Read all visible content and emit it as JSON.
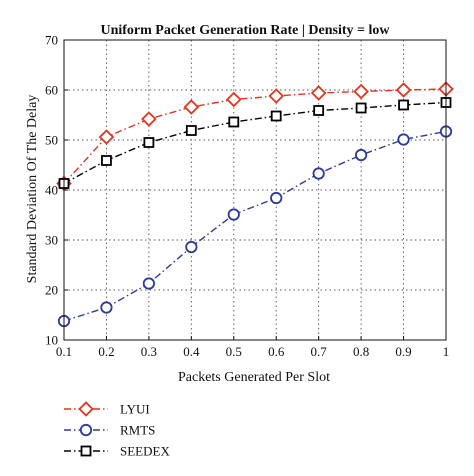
{
  "chart_data": {
    "type": "line",
    "title": "Uniform Packet Generation Rate | Density = low",
    "xlabel": "Packets Generated Per Slot",
    "ylabel": "Standard Deviation Of The Delay",
    "x": [
      0.1,
      0.2,
      0.3,
      0.4,
      0.5,
      0.6,
      0.7,
      0.8,
      0.9,
      1.0
    ],
    "x_tick_labels": [
      "0.1",
      "0.2",
      "0.3",
      "0.4",
      "0.5",
      "0.6",
      "0.7",
      "0.8",
      "0.9",
      "1"
    ],
    "xlim": [
      0.1,
      1.0
    ],
    "ylim": [
      10,
      70
    ],
    "y_ticks": [
      10,
      20,
      30,
      40,
      50,
      60,
      70
    ],
    "grid": true,
    "legend_position": "below-left",
    "series": [
      {
        "name": "LYUI",
        "color": "#e8321e",
        "marker": "diamond",
        "line_style": "dash-dot",
        "values": [
          41.3,
          50.6,
          54.2,
          56.6,
          58.1,
          58.8,
          59.4,
          59.7,
          60.0,
          60.2
        ]
      },
      {
        "name": "RMTS",
        "color": "#2e3a9c",
        "marker": "circle",
        "line_style": "dash-dot",
        "values": [
          13.8,
          16.5,
          21.3,
          28.6,
          35.1,
          38.4,
          43.3,
          47.0,
          50.1,
          51.7
        ]
      },
      {
        "name": "SEEDEX",
        "color": "#000000",
        "marker": "square",
        "line_style": "dash-dot",
        "values": [
          41.3,
          45.9,
          49.5,
          51.9,
          53.6,
          54.8,
          55.9,
          56.4,
          57.0,
          57.5
        ]
      }
    ]
  }
}
